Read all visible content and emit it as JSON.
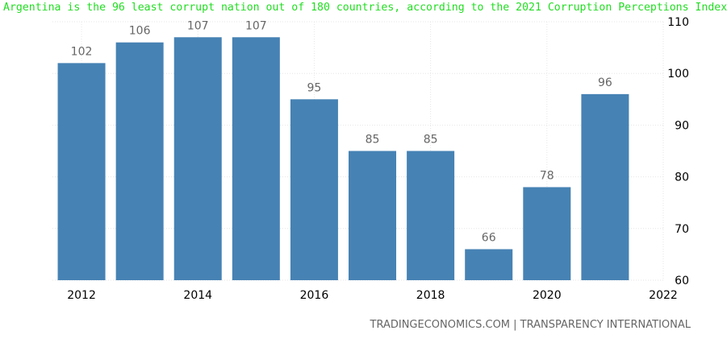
{
  "headline": "Argentina is the 96 least corrupt nation out of 180 countries, according to the 2021 Corruption Perceptions Index",
  "source": "TRADINGECONOMICS.COM | TRANSPARENCY INTERNATIONAL",
  "colors": {
    "bar": "#4682b4",
    "headline": "#22dd22",
    "grid": "#e6e6e6",
    "label": "#666666"
  },
  "chart_data": {
    "type": "bar",
    "categories": [
      "2012",
      "2013",
      "2014",
      "2015",
      "2016",
      "2017",
      "2018",
      "2019",
      "2020",
      "2021"
    ],
    "values": [
      102,
      106,
      107,
      107,
      95,
      85,
      85,
      66,
      78,
      96
    ],
    "data_labels": [
      "102",
      "106",
      "107",
      "107",
      "95",
      "85",
      "85",
      "66",
      "78",
      "96"
    ],
    "xticks": [
      "2012",
      "2014",
      "2016",
      "2018",
      "2020",
      "2022"
    ],
    "xlim": [
      2011.5,
      2022
    ],
    "ylim": [
      60,
      110
    ],
    "yticks": [
      60,
      70,
      80,
      90,
      100,
      110
    ],
    "grid": true,
    "y_axis_side": "right"
  }
}
